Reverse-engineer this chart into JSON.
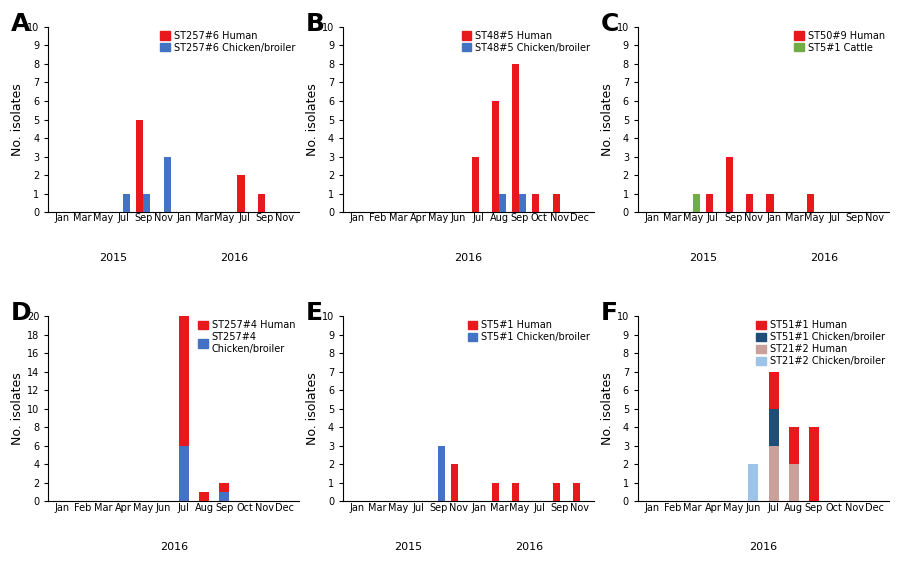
{
  "panels": [
    {
      "label": "A",
      "legend": [
        {
          "label": "ST257#6 Human",
          "color": "#e8191c"
        },
        {
          "label": "ST257#6 Chicken/broiler",
          "color": "#4472c4"
        }
      ],
      "ylim": [
        0,
        10
      ],
      "yticks": [
        0,
        1,
        2,
        3,
        4,
        5,
        6,
        7,
        8,
        9,
        10
      ],
      "ylabel": "No. isolates",
      "years": [
        "2015",
        "2016"
      ],
      "months_per_year": [
        [
          "Jan",
          "Mar",
          "May",
          "Jul",
          "Sep",
          "Nov"
        ],
        [
          "Jan",
          "Mar",
          "May",
          "Jul",
          "Sep",
          "Nov"
        ]
      ],
      "stacked": false,
      "series": [
        {
          "color": "#e8191c",
          "data": {
            "2015_Sep": 5,
            "2016_Jul": 2,
            "2016_Sep": 1
          }
        },
        {
          "color": "#4472c4",
          "data": {
            "2015_Jul": 1,
            "2015_Sep": 1,
            "2015_Nov": 3
          }
        }
      ]
    },
    {
      "label": "B",
      "legend": [
        {
          "label": "ST48#5 Human",
          "color": "#e8191c"
        },
        {
          "label": "ST48#5 Chicken/broiler",
          "color": "#4472c4"
        }
      ],
      "ylim": [
        0,
        10
      ],
      "yticks": [
        0,
        1,
        2,
        3,
        4,
        5,
        6,
        7,
        8,
        9,
        10
      ],
      "ylabel": "No. isolates",
      "years": [
        "2016"
      ],
      "months_per_year": [
        [
          "Jan",
          "Feb",
          "Mar",
          "Apr",
          "May",
          "Jun",
          "Jul",
          "Aug",
          "Sep",
          "Oct",
          "Nov",
          "Dec"
        ]
      ],
      "stacked": false,
      "series": [
        {
          "color": "#e8191c",
          "data": {
            "2016_Jul": 3,
            "2016_Aug": 6,
            "2016_Sep": 8,
            "2016_Oct": 1,
            "2016_Nov": 1
          }
        },
        {
          "color": "#4472c4",
          "data": {
            "2016_Aug": 1,
            "2016_Sep": 1
          }
        }
      ]
    },
    {
      "label": "C",
      "legend": [
        {
          "label": "ST50#9 Human",
          "color": "#e8191c"
        },
        {
          "label": "ST5#1 Cattle",
          "color": "#70ad47"
        }
      ],
      "ylim": [
        0,
        10
      ],
      "yticks": [
        0,
        1,
        2,
        3,
        4,
        5,
        6,
        7,
        8,
        9,
        10
      ],
      "ylabel": "No. isolates",
      "years": [
        "2015",
        "2016"
      ],
      "months_per_year": [
        [
          "Jan",
          "Mar",
          "May",
          "Jul",
          "Sep",
          "Nov"
        ],
        [
          "Jan",
          "Mar",
          "May",
          "Jul",
          "Sep",
          "Nov"
        ]
      ],
      "stacked": false,
      "series": [
        {
          "color": "#e8191c",
          "data": {
            "2015_Jul": 1,
            "2015_Sep": 3,
            "2015_Nov": 1,
            "2016_Jan": 1,
            "2016_May": 1
          }
        },
        {
          "color": "#70ad47",
          "data": {
            "2015_May": 1
          }
        }
      ]
    },
    {
      "label": "D",
      "legend": [
        {
          "label": "ST257#4 Human",
          "color": "#e8191c"
        },
        {
          "label": "ST257#4\nChicken/broiler",
          "color": "#4472c4"
        }
      ],
      "ylim": [
        0,
        20
      ],
      "yticks": [
        0,
        2,
        4,
        6,
        8,
        10,
        12,
        14,
        16,
        18,
        20
      ],
      "ylabel": "No. isolates",
      "years": [
        "2016"
      ],
      "months_per_year": [
        [
          "Jan",
          "Feb",
          "Mar",
          "Apr",
          "May",
          "Jun",
          "Jul",
          "Aug",
          "Sep",
          "Oct",
          "Nov",
          "Dec"
        ]
      ],
      "stacked": true,
      "series": [
        {
          "color": "#4472c4",
          "data": {
            "2016_Jul": 6,
            "2016_Sep": 1
          }
        },
        {
          "color": "#e8191c",
          "data": {
            "2016_Jul": 14,
            "2016_Aug": 1,
            "2016_Sep": 1
          }
        }
      ]
    },
    {
      "label": "E",
      "legend": [
        {
          "label": "ST5#1 Human",
          "color": "#e8191c"
        },
        {
          "label": "ST5#1 Chicken/broiler",
          "color": "#4472c4"
        }
      ],
      "ylim": [
        0,
        10
      ],
      "yticks": [
        0,
        1,
        2,
        3,
        4,
        5,
        6,
        7,
        8,
        9,
        10
      ],
      "ylabel": "No. isolates",
      "years": [
        "2015",
        "2016"
      ],
      "months_per_year": [
        [
          "Jan",
          "Mar",
          "May",
          "Jul",
          "Sep",
          "Nov"
        ],
        [
          "Jan",
          "Mar",
          "May",
          "Jul",
          "Sep",
          "Nov"
        ]
      ],
      "stacked": false,
      "series": [
        {
          "color": "#e8191c",
          "data": {
            "2015_Nov": 2,
            "2016_Mar": 1,
            "2016_May": 1,
            "2016_Sep": 1,
            "2016_Nov": 1
          }
        },
        {
          "color": "#4472c4",
          "data": {
            "2015_Sep": 3
          }
        }
      ]
    },
    {
      "label": "F",
      "legend": [
        {
          "label": "ST51#1 Human",
          "color": "#e8191c"
        },
        {
          "label": "ST51#1 Chicken/broiler",
          "color": "#1f4e79"
        },
        {
          "label": "ST21#2 Human",
          "color": "#c9a09a"
        },
        {
          "label": "ST21#2 Chicken/broiler",
          "color": "#9dc3e6"
        }
      ],
      "ylim": [
        0,
        10
      ],
      "yticks": [
        0,
        1,
        2,
        3,
        4,
        5,
        6,
        7,
        8,
        9,
        10
      ],
      "ylabel": "No. isolates",
      "years": [
        "2016"
      ],
      "months_per_year": [
        [
          "Jan",
          "Feb",
          "Mar",
          "Apr",
          "May",
          "Jun",
          "Jul",
          "Aug",
          "Sep",
          "Oct",
          "Nov",
          "Dec"
        ]
      ],
      "stacked": true,
      "series": [
        {
          "color": "#9dc3e6",
          "data": {
            "2016_Jun": 2
          }
        },
        {
          "color": "#c9a09a",
          "data": {
            "2016_Jul": 3,
            "2016_Aug": 2
          }
        },
        {
          "color": "#1f4e79",
          "data": {
            "2016_Jul": 2
          }
        },
        {
          "color": "#e8191c",
          "data": {
            "2016_Jul": 2,
            "2016_Aug": 2,
            "2016_Sep": 4
          }
        }
      ]
    }
  ],
  "background_color": "#ffffff",
  "label_fontsize": 18,
  "tick_fontsize": 7,
  "legend_fontsize": 7,
  "ylabel_fontsize": 9
}
